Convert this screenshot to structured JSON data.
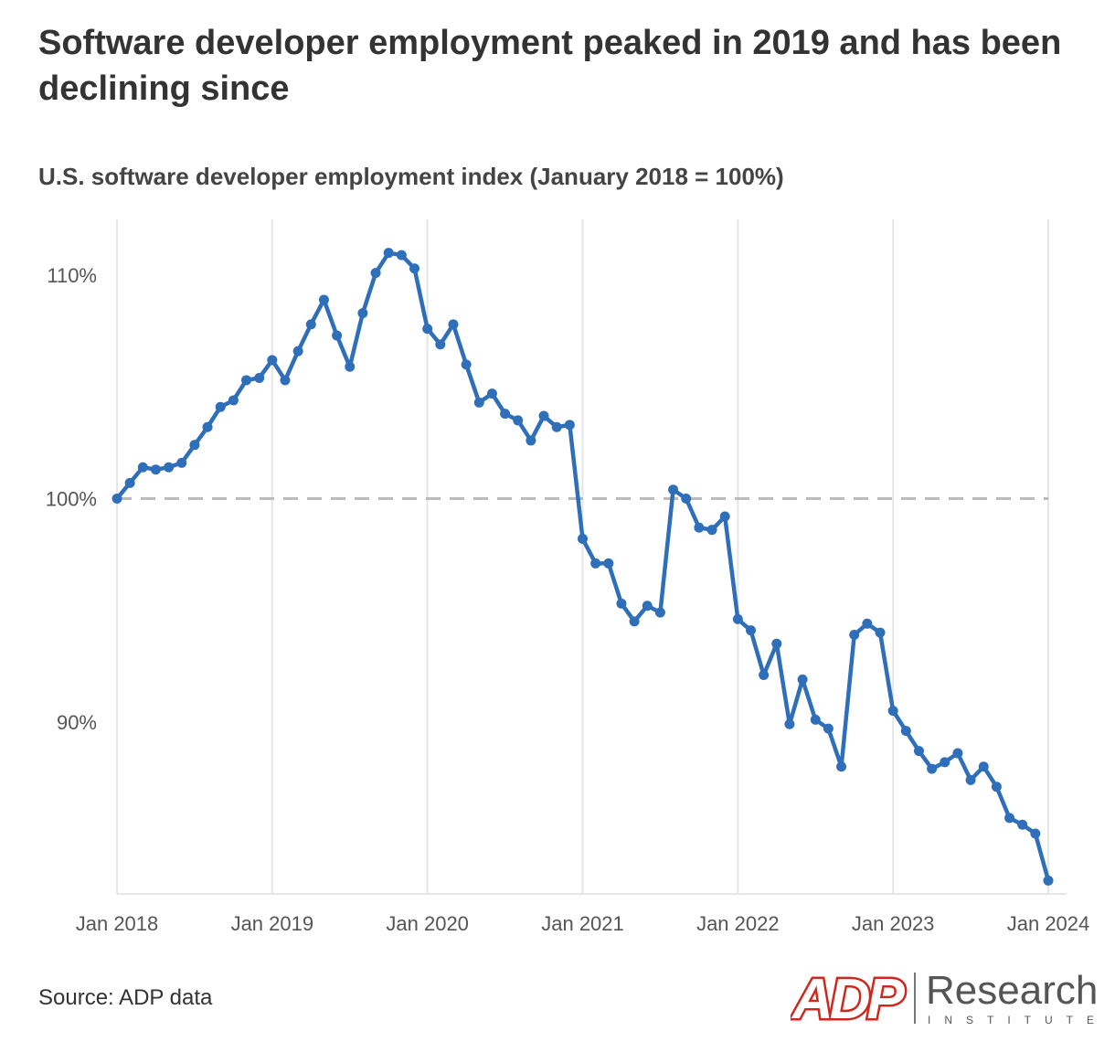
{
  "header": {
    "title": "Software developer employment peaked in 2019 and has been declining since",
    "subtitle": "U.S. software developer employment index (January 2018 = 100%)"
  },
  "footer": {
    "source": "Source: ADP data"
  },
  "logo": {
    "mark_text": "ADP",
    "name": "Research",
    "tagline": "INSTITUTE"
  },
  "colors": {
    "line": "#2f6fba",
    "reference": "#bbbbbb",
    "grid": "#e6e6e6",
    "logo_red": "#d0271d",
    "logo_gray": "#555555"
  },
  "chart_data": {
    "type": "line",
    "title": "U.S. software developer employment index (January 2018 = 100%)",
    "xlabel": "",
    "ylabel": "",
    "x_ticks": [
      "Jan 2018",
      "Jan 2019",
      "Jan 2020",
      "Jan 2021",
      "Jan 2022",
      "Jan 2023",
      "Jan 2024"
    ],
    "y_ticks": [
      {
        "value": 90,
        "label": "90%"
      },
      {
        "value": 100,
        "label": "100%"
      },
      {
        "value": 110,
        "label": "110%"
      }
    ],
    "ylim": [
      82.3,
      112.5
    ],
    "x_range_months": [
      0,
      72
    ],
    "reference_line": {
      "value": 100,
      "style": "dashed"
    },
    "grid": "vertical",
    "series": [
      {
        "name": "Software developer employment index",
        "start": "Jan 2018",
        "frequency": "monthly",
        "values": [
          100.0,
          100.7,
          101.4,
          101.3,
          101.4,
          101.6,
          102.4,
          103.2,
          104.1,
          104.4,
          105.3,
          105.4,
          106.2,
          105.3,
          106.6,
          107.8,
          108.9,
          107.3,
          105.9,
          108.3,
          110.1,
          111.0,
          110.9,
          110.3,
          107.6,
          106.9,
          107.8,
          106.0,
          104.3,
          104.7,
          103.8,
          103.5,
          102.6,
          103.7,
          103.2,
          103.3,
          98.2,
          97.1,
          97.1,
          95.3,
          94.5,
          95.2,
          94.9,
          100.4,
          100.0,
          98.7,
          98.6,
          99.2,
          94.6,
          94.1,
          92.1,
          93.5,
          89.9,
          91.9,
          90.1,
          89.7,
          88.0,
          93.9,
          94.4,
          94.0,
          90.5,
          89.6,
          88.7,
          87.9,
          88.2,
          88.6,
          87.4,
          88.0,
          87.1,
          85.7,
          85.4,
          85.0,
          82.9
        ]
      }
    ]
  }
}
